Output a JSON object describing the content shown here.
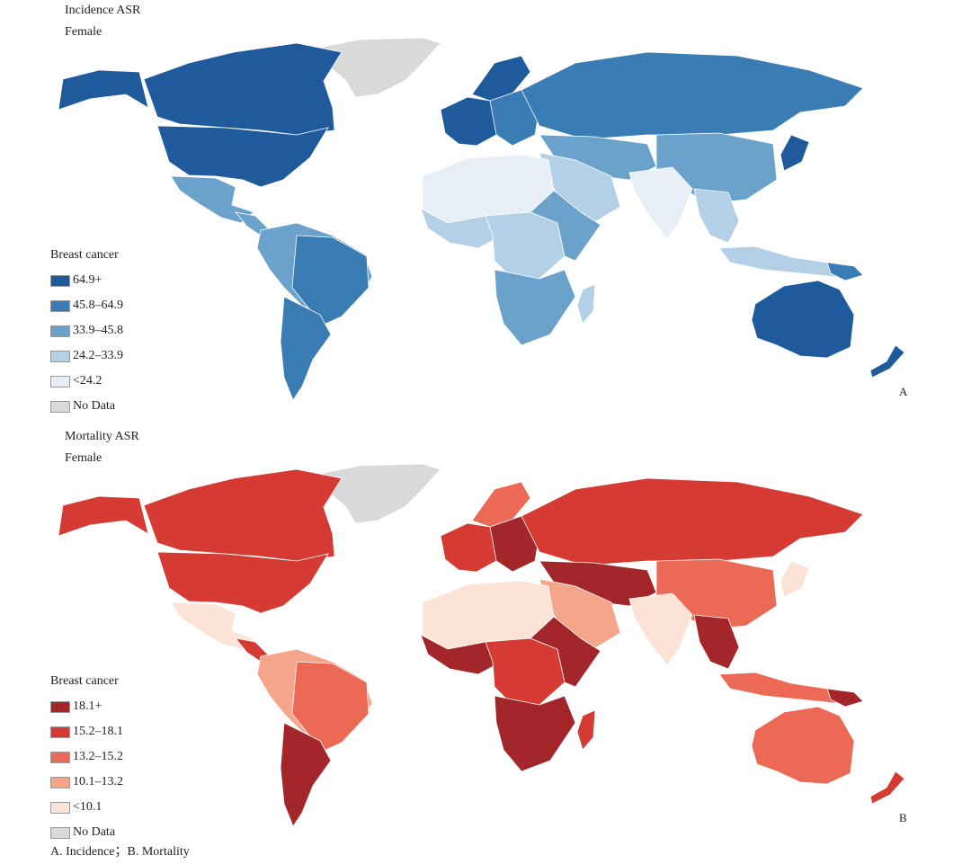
{
  "panel_a": {
    "title": "Incidence ASR",
    "subtitle": "Female",
    "letter": "A",
    "legend": {
      "title": "Breast cancer",
      "items": [
        {
          "label": "64.9+",
          "color": "#1f5a9c"
        },
        {
          "label": "45.8–64.9",
          "color": "#3a7cb4"
        },
        {
          "label": "33.9–45.8",
          "color": "#6aa2cc"
        },
        {
          "label": "24.2–33.9",
          "color": "#b3d0e6"
        },
        {
          "label": "<24.2",
          "color": "#e8eef6"
        },
        {
          "label": "No Data",
          "color": "#d9d9d9"
        }
      ]
    }
  },
  "panel_b": {
    "title": "Mortality ASR",
    "subtitle": "Female",
    "letter": "B",
    "legend": {
      "title": "Breast cancer",
      "items": [
        {
          "label": "18.1+",
          "color": "#a3262a"
        },
        {
          "label": "15.2–18.1",
          "color": "#d53a33"
        },
        {
          "label": "13.2–15.2",
          "color": "#ec6a55"
        },
        {
          "label": "10.1–13.2",
          "color": "#f4a58a"
        },
        {
          "label": "<10.1",
          "color": "#fde2d6"
        },
        {
          "label": "No Data",
          "color": "#d9d9d9"
        }
      ]
    }
  },
  "caption": "A. Incidence；B. Mortality"
}
